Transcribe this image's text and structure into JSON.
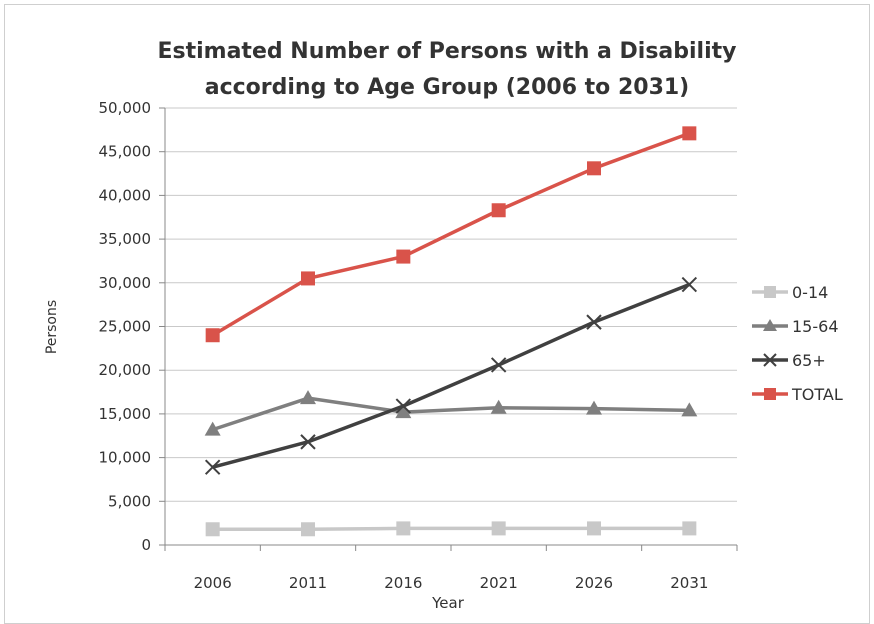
{
  "chart_data": {
    "type": "line",
    "title": "Estimated Number of Persons with a Disability according to Age Group (2006 to 2031)",
    "title_lines": [
      "Estimated Number of Persons with a Disability",
      "according to Age Group (2006 to 2031)"
    ],
    "xlabel": "Year",
    "ylabel": "Persons",
    "categories": [
      "2006",
      "2011",
      "2016",
      "2021",
      "2026",
      "2031"
    ],
    "ylim": [
      0,
      50000
    ],
    "yticks": [
      0,
      5000,
      10000,
      15000,
      20000,
      25000,
      30000,
      35000,
      40000,
      45000,
      50000
    ],
    "ytick_labels": [
      "0",
      "5,000",
      "10,000",
      "15,000",
      "20,000",
      "25,000",
      "30,000",
      "35,000",
      "40,000",
      "45,000",
      "50,000"
    ],
    "grid": true,
    "legend_position": "right",
    "series": [
      {
        "name": "0-14",
        "values": [
          1800,
          1800,
          1900,
          1900,
          1900,
          1900
        ],
        "color": "#c8c8c8",
        "marker": "square"
      },
      {
        "name": "15-64",
        "values": [
          13200,
          16800,
          15200,
          15700,
          15600,
          15400
        ],
        "color": "#7f7f7f",
        "marker": "triangle"
      },
      {
        "name": "65+",
        "values": [
          8900,
          11800,
          15900,
          20600,
          25500,
          29800
        ],
        "color": "#404040",
        "marker": "x"
      },
      {
        "name": "TOTAL",
        "values": [
          24000,
          30500,
          33000,
          38300,
          43100,
          47100
        ],
        "color": "#d9534a",
        "marker": "square"
      }
    ]
  }
}
